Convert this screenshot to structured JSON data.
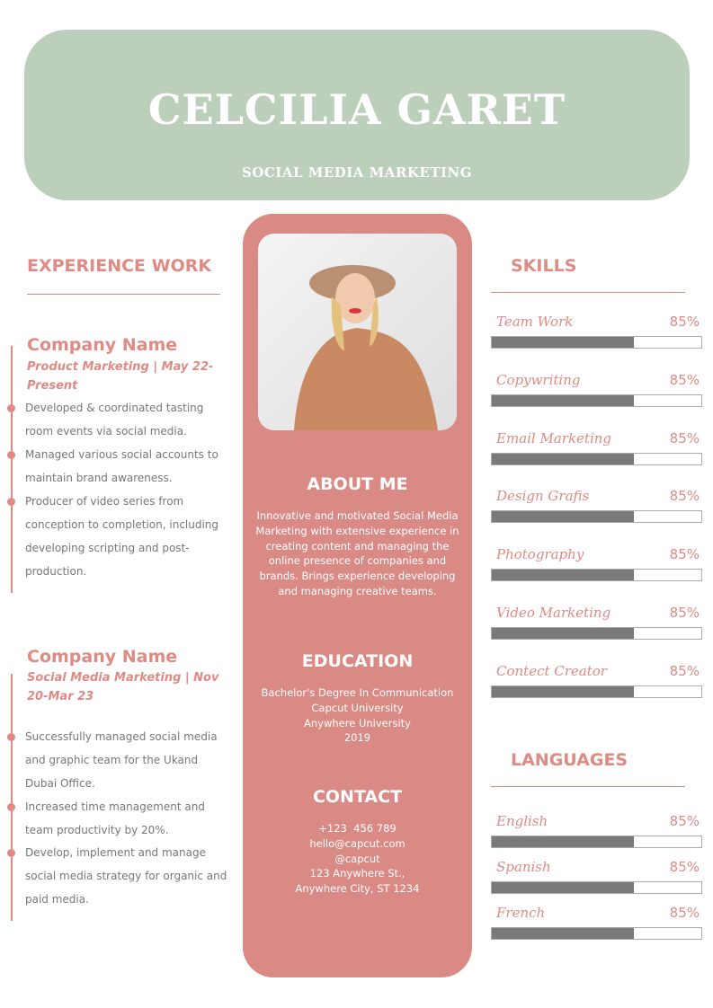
{
  "header": {
    "name": "CELCILIA GARET",
    "title": "SOCIAL MEDIA MARKETING"
  },
  "experience": {
    "heading": "EXPERIENCE WORK",
    "jobs": [
      {
        "company": "Company Name",
        "role": "Product Marketing | May 22-Present",
        "bullets": [
          "Developed & coordinated tasting room events via social media.",
          "Managed various social accounts to maintain brand awareness.",
          "Producer of video series from conception to completion, including developing scripting and post-production."
        ]
      },
      {
        "company": "Company Name",
        "role": "Social Media Marketing | Nov 20-Mar 23",
        "bullets": [
          "Successfully managed social media and graphic team for the Ukand Dubai Office.",
          "Increased time management and team productivity by 20%.",
          "Develop, implement and manage social media strategy for organic and paid media."
        ]
      }
    ]
  },
  "about": {
    "heading": "ABOUT ME",
    "text": "Innovative and motivated Social Media Marketing with extensive experience in creating content and managing the online presence of companies and brands. Brings experience developing and managing creative teams."
  },
  "education": {
    "heading": "EDUCATION",
    "lines": [
      "Bachelor's Degree In Communication",
      "Capcut University",
      "Anywhere University",
      "2019"
    ]
  },
  "contact": {
    "heading": "CONTACT",
    "lines": [
      "+123  456 789",
      "hello@capcut.com",
      "@capcut",
      "123 Anywhere St.,",
      "Anywhere City, ST 1234"
    ]
  },
  "skills": {
    "heading": "SKILLS",
    "items": [
      {
        "name": "Team Work",
        "pct": "85%",
        "fill": 0.68
      },
      {
        "name": "Copywriting",
        "pct": "85%",
        "fill": 0.68
      },
      {
        "name": "Email Marketing",
        "pct": "85%",
        "fill": 0.68
      },
      {
        "name": "Design Grafis",
        "pct": "85%",
        "fill": 0.68
      },
      {
        "name": "Photography",
        "pct": "85%",
        "fill": 0.68
      },
      {
        "name": "Video Marketing",
        "pct": "85%",
        "fill": 0.68
      },
      {
        "name": "Contect Creator",
        "pct": "85%",
        "fill": 0.68
      }
    ]
  },
  "languages": {
    "heading": "LANGUAGES",
    "items": [
      {
        "name": "English",
        "pct": "85%",
        "fill": 0.68
      },
      {
        "name": "Spanish",
        "pct": "85%",
        "fill": 0.68
      },
      {
        "name": "French",
        "pct": "85%",
        "fill": 0.68
      }
    ]
  },
  "colors": {
    "accent": "#de8b84",
    "header_bg": "#bccfbb",
    "panel": "#d98a85",
    "bar": "#7a7a7a"
  }
}
